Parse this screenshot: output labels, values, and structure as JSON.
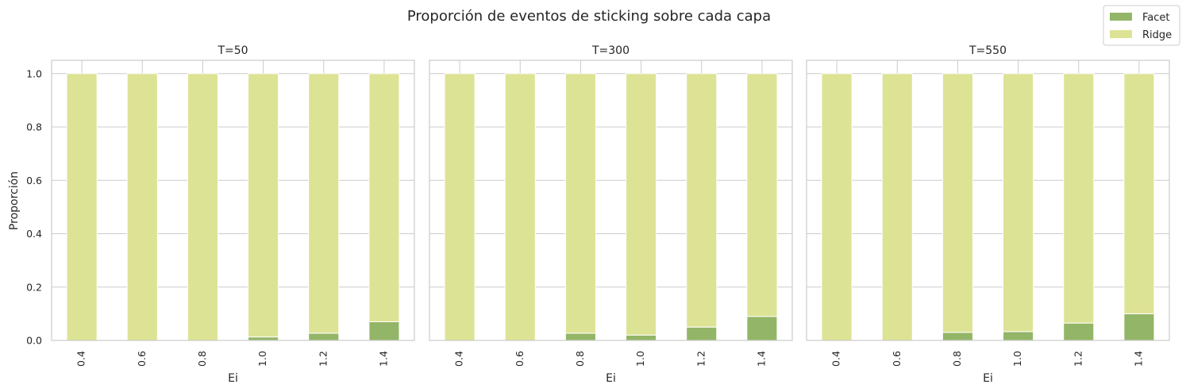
{
  "figure": {
    "title": "Proporción de eventos de sticking sobre cada capa",
    "ylabel": "Proporción",
    "legend": {
      "placement": "top-right",
      "items": [
        {
          "label": "Facet",
          "color": "#93b567"
        },
        {
          "label": "Ridge",
          "color": "#dde394"
        }
      ]
    }
  },
  "chart_data": [
    {
      "type": "bar",
      "stacked": true,
      "title": "T=50",
      "xlabel": "Ei",
      "ylabel": "Proporción",
      "categories": [
        "0.4",
        "0.6",
        "0.8",
        "1.0",
        "1.2",
        "1.4"
      ],
      "ylim": [
        0,
        1.05
      ],
      "yticks": [
        "0.0",
        "0.2",
        "0.4",
        "0.6",
        "0.8",
        "1.0"
      ],
      "grid": true,
      "series": [
        {
          "name": "Facet",
          "values": [
            0.0,
            0.0,
            0.0,
            0.013,
            0.027,
            0.07
          ]
        },
        {
          "name": "Ridge",
          "values": [
            1.0,
            1.0,
            1.0,
            0.987,
            0.973,
            0.93
          ]
        }
      ]
    },
    {
      "type": "bar",
      "stacked": true,
      "title": "T=300",
      "xlabel": "Ei",
      "ylabel": "",
      "categories": [
        "0.4",
        "0.6",
        "0.8",
        "1.0",
        "1.2",
        "1.4"
      ],
      "ylim": [
        0,
        1.05
      ],
      "grid": true,
      "series": [
        {
          "name": "Facet",
          "values": [
            0.0,
            0.0,
            0.027,
            0.02,
            0.05,
            0.09
          ]
        },
        {
          "name": "Ridge",
          "values": [
            1.0,
            1.0,
            0.973,
            0.98,
            0.95,
            0.91
          ]
        }
      ]
    },
    {
      "type": "bar",
      "stacked": true,
      "title": "T=550",
      "xlabel": "Ei",
      "ylabel": "",
      "categories": [
        "0.4",
        "0.6",
        "0.8",
        "1.0",
        "1.2",
        "1.4"
      ],
      "ylim": [
        0,
        1.05
      ],
      "grid": true,
      "series": [
        {
          "name": "Facet",
          "values": [
            0.0,
            0.0,
            0.03,
            0.033,
            0.065,
            0.1
          ]
        },
        {
          "name": "Ridge",
          "values": [
            1.0,
            1.0,
            0.97,
            0.967,
            0.935,
            0.9
          ]
        }
      ]
    }
  ]
}
